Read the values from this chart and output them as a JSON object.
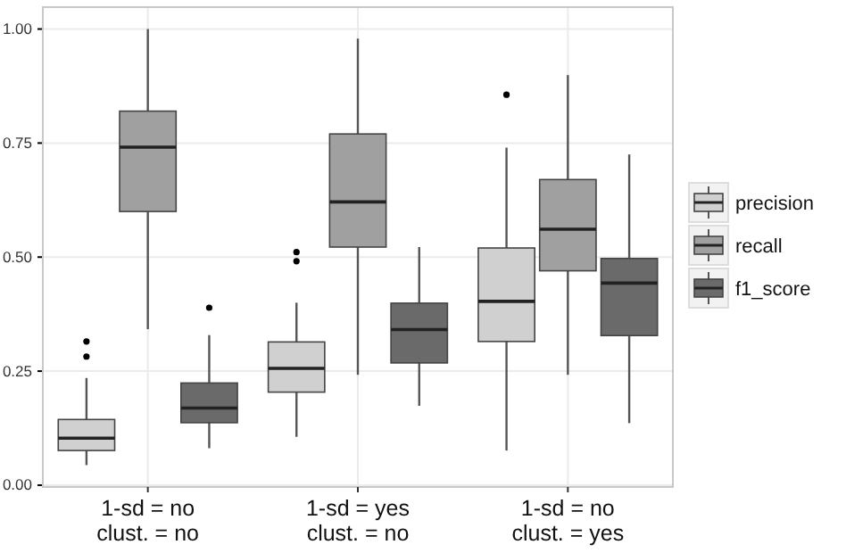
{
  "chart_data": {
    "type": "box",
    "categories": [
      "1-sd = no\nclust. = no",
      "1-sd = yes\nclust. = no",
      "1-sd = no\nclust. = yes"
    ],
    "ylim": [
      -0.004,
      1.048
    ],
    "yticks": [
      {
        "value": 0,
        "label": "0.00"
      },
      {
        "value": 0.25,
        "label": "0.25"
      },
      {
        "value": 0.5,
        "label": "0.50"
      },
      {
        "value": 0.75,
        "label": "0.75"
      },
      {
        "value": 1,
        "label": "1.00"
      }
    ],
    "grid": true,
    "legend": "right",
    "series": [
      {
        "name": "precision",
        "color": "#d0d0d0",
        "boxes": [
          {
            "low": 0.044,
            "q1": 0.076,
            "median": 0.103,
            "q3": 0.144,
            "high": 0.235,
            "outliers": [
              0.315,
              0.282
            ]
          },
          {
            "low": 0.106,
            "q1": 0.204,
            "median": 0.256,
            "q3": 0.314,
            "high": 0.4,
            "outliers": [
              0.511,
              0.491
            ]
          },
          {
            "low": 0.076,
            "q1": 0.315,
            "median": 0.403,
            "q3": 0.52,
            "high": 0.74,
            "outliers": [
              0.856
            ]
          }
        ]
      },
      {
        "name": "recall",
        "color": "#a0a0a0",
        "boxes": [
          {
            "low": 0.342,
            "q1": 0.6,
            "median": 0.741,
            "q3": 0.82,
            "high": 1.0
          },
          {
            "low": 0.242,
            "q1": 0.522,
            "median": 0.621,
            "q3": 0.77,
            "high": 0.979
          },
          {
            "low": 0.242,
            "q1": 0.47,
            "median": 0.561,
            "q3": 0.67,
            "high": 0.899
          }
        ]
      },
      {
        "name": "f1_score",
        "color": "#6a6a6a",
        "boxes": [
          {
            "low": 0.081,
            "q1": 0.137,
            "median": 0.169,
            "q3": 0.224,
            "high": 0.329,
            "outliers": [
              0.389
            ]
          },
          {
            "low": 0.174,
            "q1": 0.268,
            "median": 0.341,
            "q3": 0.399,
            "high": 0.522
          },
          {
            "low": 0.136,
            "q1": 0.328,
            "median": 0.443,
            "q3": 0.497,
            "high": 0.725
          }
        ]
      }
    ]
  }
}
